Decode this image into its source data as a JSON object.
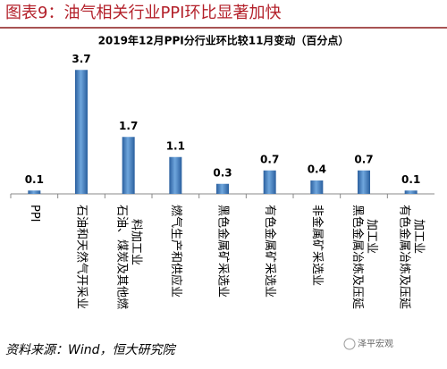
{
  "header": "图表9：油气相关行业PPI环比显著加快",
  "chart_data": {
    "type": "bar",
    "title": "2019年12月PPI分行业环比较11月变动（百分点）",
    "categories": [
      "PPI",
      "石油和天然气开采业",
      "石油、煤炭及其他燃料加工业",
      "燃气生产和供应业",
      "黑色金属矿采选业",
      "有色金属矿采选业",
      "非金属矿采选业",
      "黑色金属冶炼及压延加工业",
      "有色金属冶炼及压延加工业"
    ],
    "values": [
      0.1,
      3.7,
      1.7,
      1.1,
      0.3,
      0.7,
      0.4,
      0.7,
      0.1
    ],
    "color": "#3f7fc2",
    "ylim": [
      0,
      4
    ]
  },
  "source": "资料来源：Wind，恒大研究院",
  "watermark": "泽平宏观"
}
